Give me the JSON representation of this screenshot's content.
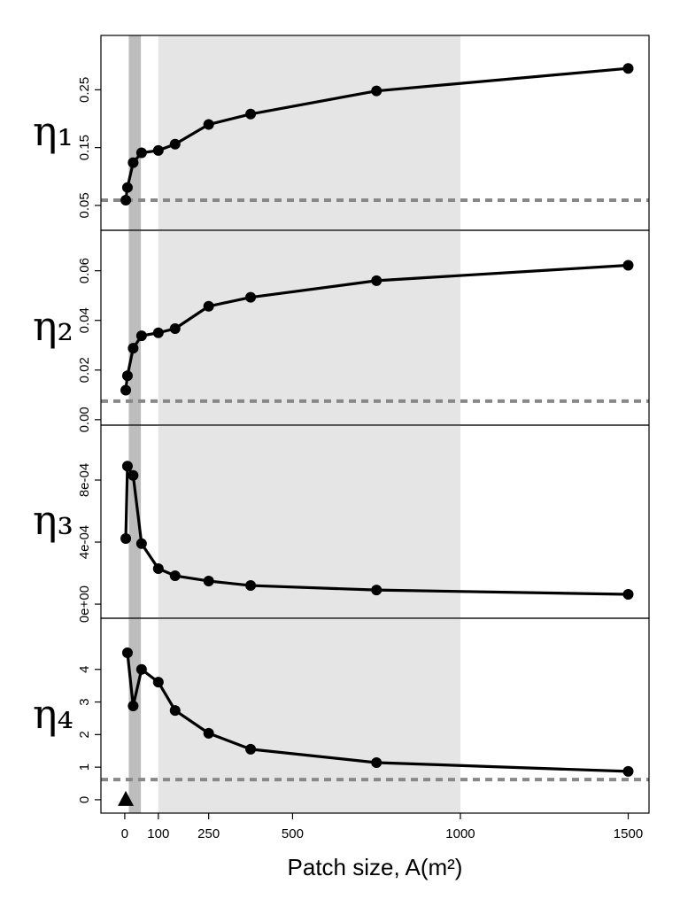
{
  "chart_data": [
    {
      "type": "line",
      "ylabel": "η₁",
      "x": [
        3,
        8,
        25,
        50,
        100,
        150,
        250,
        375,
        750,
        1500
      ],
      "values": [
        0.059,
        0.081,
        0.124,
        0.141,
        0.145,
        0.156,
        0.19,
        0.208,
        0.248,
        0.287
      ],
      "color": "#000000",
      "xlim": [
        -71,
        1562
      ],
      "ylim": [
        0.007,
        0.344
      ],
      "yticks": [
        0.05,
        0.15,
        0.25
      ],
      "reference_line": {
        "value": 0.059,
        "color": "#888888"
      },
      "shaded_regions": [
        {
          "range": [
            12,
            48
          ],
          "color": "#bdbdbd"
        },
        {
          "range": [
            100,
            1000
          ],
          "color": "#e5e5e5"
        }
      ]
    },
    {
      "type": "line",
      "ylabel": "η₂",
      "x": [
        3,
        8,
        25,
        50,
        100,
        150,
        250,
        375,
        750,
        1500
      ],
      "values": [
        0.0119,
        0.0177,
        0.0288,
        0.0338,
        0.035,
        0.0367,
        0.0457,
        0.0493,
        0.056,
        0.0622
      ],
      "color": "#000000",
      "xlim": [
        -71,
        1562
      ],
      "ylim": [
        -0.0022,
        0.0763
      ],
      "yticks": [
        {
          "value": 0,
          "label": "0.00"
        },
        {
          "value": 0.02,
          "label": "0.02"
        },
        {
          "value": 0.04,
          "label": "0.04"
        },
        {
          "value": 0.06,
          "label": "0.06"
        }
      ],
      "reference_line": {
        "value": 0.0075,
        "color": "#888888"
      },
      "shaded_regions": [
        {
          "range": [
            12,
            48
          ],
          "color": "#bdbdbd"
        },
        {
          "range": [
            100,
            1000
          ],
          "color": "#e5e5e5"
        }
      ]
    },
    {
      "type": "line",
      "ylabel": "η₃",
      "x": [
        3,
        8,
        25,
        50,
        100,
        150,
        250,
        375,
        750,
        1500
      ],
      "values": [
        0.000423,
        0.00089,
        0.00083,
        0.00039,
        0.000229,
        0.000183,
        0.000149,
        0.00012,
        9.1e-05,
        6.3e-05
      ],
      "color": "#000000",
      "xlim": [
        -71,
        1562
      ],
      "ylim": [
        -9.1e-05,
        0.001154
      ],
      "yticks": [
        {
          "value": 0,
          "label": "0e+00"
        },
        {
          "value": 0.0004,
          "label": "4e-04"
        },
        {
          "value": 0.0008,
          "label": "8e-04"
        }
      ],
      "shaded_regions": [
        {
          "range": [
            12,
            48
          ],
          "color": "#bdbdbd"
        },
        {
          "range": [
            100,
            1000
          ],
          "color": "#e5e5e5"
        }
      ]
    },
    {
      "type": "line",
      "ylabel": "η₄",
      "x": [
        3,
        8,
        25,
        50,
        100,
        150,
        250,
        375,
        750,
        1500
      ],
      "values": [
        null,
        4.51,
        2.88,
        4.0,
        3.61,
        2.74,
        2.04,
        1.55,
        1.14,
        0.87
      ],
      "color": "#000000",
      "xlim": [
        -71,
        1562
      ],
      "ylim": [
        -0.41,
        5.57
      ],
      "yticks": [
        0,
        1,
        2,
        3,
        4
      ],
      "reference_line": {
        "value": 0.62,
        "color": "#888888"
      },
      "special_point": {
        "x": 3,
        "y": 0
      },
      "shaded_regions": [
        {
          "range": [
            12,
            48
          ],
          "color": "#bdbdbd"
        },
        {
          "range": [
            100,
            1000
          ],
          "color": "#e5e5e5"
        }
      ],
      "xticks": [
        0,
        100,
        250,
        500,
        1000,
        1500
      ],
      "xlabel": "Patch size, A(m²)"
    }
  ]
}
